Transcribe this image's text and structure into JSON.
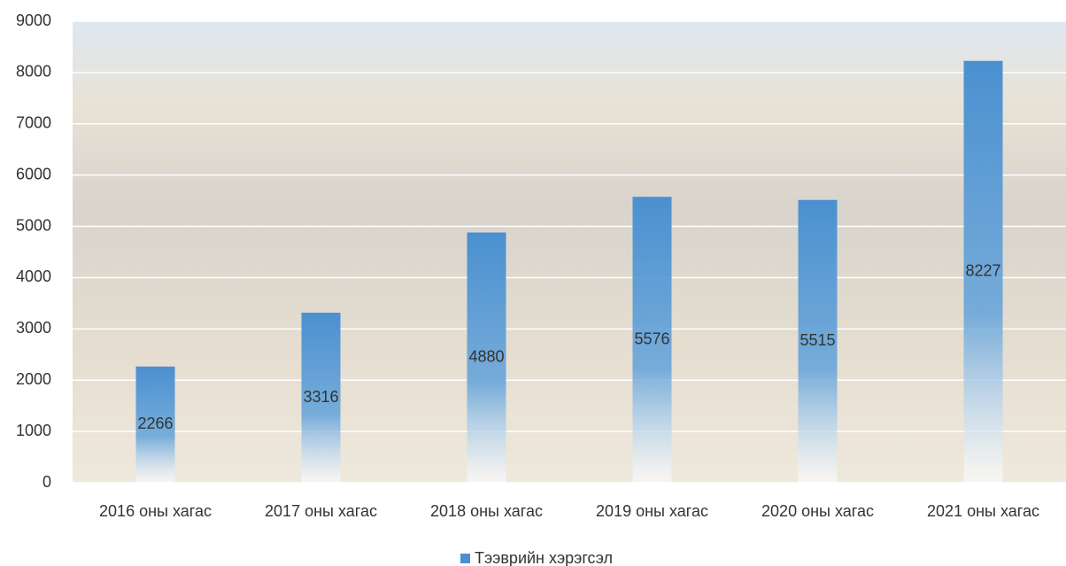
{
  "chart_data": {
    "type": "bar",
    "categories": [
      "2016 оны хагас",
      "2017 оны хагас",
      "2018 оны хагас",
      "2019 оны хагас",
      "2020 оны хагас",
      "2021 оны хагас"
    ],
    "series": [
      {
        "name": "Тээврийн хэрэгсэл",
        "color": "#4a90d0",
        "values": [
          2266,
          3316,
          4880,
          5576,
          5515,
          8227
        ]
      }
    ],
    "ylim": [
      0,
      9000
    ],
    "yticks": [
      0,
      1000,
      2000,
      3000,
      4000,
      5000,
      6000,
      7000,
      8000,
      9000
    ],
    "grid": true,
    "legend": "bottom"
  }
}
